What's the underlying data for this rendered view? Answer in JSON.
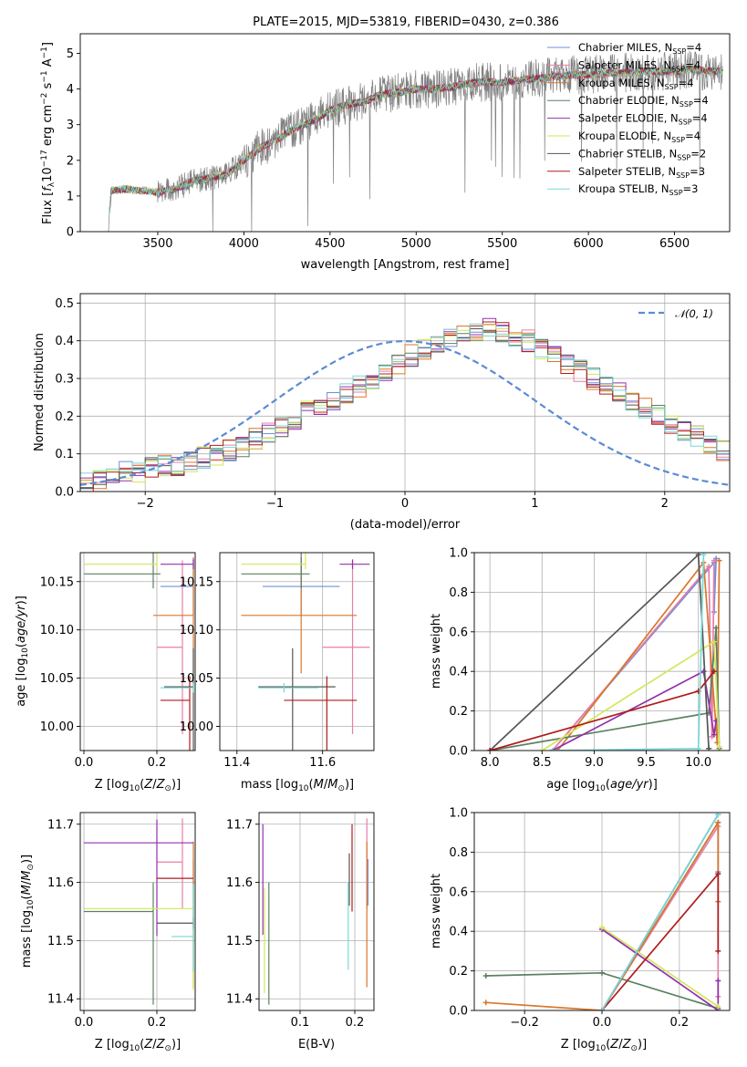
{
  "title": "PLATE=2015, MJD=53819, FIBERID=0430, z=0.386",
  "series_styles": [
    {
      "name": "Chabrier MILES, N_SSP=4",
      "color": "#6f8fdc"
    },
    {
      "name": "Salpeter MILES, N_SSP=4",
      "color": "#e87ea6"
    },
    {
      "name": "Kroupa MILES, N_SSP=4",
      "color": "#d9772b"
    },
    {
      "name": "Chabrier ELODIE, N_SSP=4",
      "color": "#5b8060"
    },
    {
      "name": "Salpeter ELODIE, N_SSP=4",
      "color": "#9330ad"
    },
    {
      "name": "Kroupa ELODIE, N_SSP=4",
      "color": "#d3e65a"
    },
    {
      "name": "Chabrier STELIB, N_SSP=2",
      "color": "#555555"
    },
    {
      "name": "Salpeter STELIB, N_SSP=3",
      "color": "#b01c1c"
    },
    {
      "name": "Kroupa STELIB, N_SSP=3",
      "color": "#78d8d4"
    }
  ],
  "chart_data": [
    {
      "id": "spectrum",
      "type": "line",
      "xlabel": "wavelength [Angstrom, rest frame]",
      "ylabel": "Flux [f_λ 10^-17 erg cm^-2 s^-1 A^-1]",
      "xlim": [
        3050,
        6820
      ],
      "ylim": [
        0,
        5.55
      ],
      "xticks": [
        3500,
        4000,
        4500,
        5000,
        5500,
        6000,
        6500
      ],
      "yticks": [
        0,
        1,
        2,
        3,
        4,
        5
      ],
      "grid": false,
      "legend_position": "top-right",
      "data_color": "#808080",
      "data_points": [
        [
          3210,
          0.0
        ],
        [
          3230,
          1.15
        ],
        [
          3300,
          1.2
        ],
        [
          3400,
          1.15
        ],
        [
          3500,
          1.1
        ],
        [
          3600,
          1.2
        ],
        [
          3700,
          1.4
        ],
        [
          3800,
          1.5
        ],
        [
          3900,
          1.6
        ],
        [
          4000,
          2.0
        ],
        [
          4100,
          2.35
        ],
        [
          4200,
          2.6
        ],
        [
          4300,
          2.9
        ],
        [
          4400,
          3.1
        ],
        [
          4500,
          3.4
        ],
        [
          4600,
          3.55
        ],
        [
          4700,
          3.65
        ],
        [
          4800,
          3.85
        ],
        [
          4900,
          3.9
        ],
        [
          5000,
          4.0
        ],
        [
          5100,
          4.0
        ],
        [
          5200,
          4.05
        ],
        [
          5300,
          4.15
        ],
        [
          5400,
          4.2
        ],
        [
          5500,
          4.2
        ],
        [
          5600,
          4.25
        ],
        [
          5700,
          4.3
        ],
        [
          5800,
          4.35
        ],
        [
          5900,
          4.4
        ],
        [
          6000,
          4.4
        ],
        [
          6100,
          4.45
        ],
        [
          6200,
          4.45
        ],
        [
          6300,
          4.5
        ],
        [
          6400,
          4.5
        ],
        [
          6500,
          4.5
        ],
        [
          6600,
          4.55
        ],
        [
          6700,
          4.5
        ],
        [
          6780,
          4.5
        ]
      ]
    },
    {
      "id": "residuals",
      "type": "histogram",
      "xlabel": "(data-model)/error",
      "ylabel": "Normed distribution",
      "xlim": [
        -2.5,
        2.5
      ],
      "ylim": [
        0,
        0.525
      ],
      "xticks": [
        -2,
        -1,
        0,
        1,
        2
      ],
      "yticks": [
        0.0,
        0.1,
        0.2,
        0.3,
        0.4,
        0.5
      ],
      "grid": true,
      "legend_position": "top-right",
      "legend_label": "𝒩(0, 1)",
      "reference_curve": "normal(0,1)",
      "reference_color": "#5b8bd4",
      "bin_edges_start": -2.5,
      "bin_width": 0.1,
      "histogram_shape": [
        0.02,
        0.03,
        0.04,
        0.05,
        0.05,
        0.06,
        0.07,
        0.07,
        0.08,
        0.09,
        0.1,
        0.11,
        0.12,
        0.14,
        0.16,
        0.17,
        0.19,
        0.21,
        0.23,
        0.24,
        0.26,
        0.28,
        0.3,
        0.32,
        0.34,
        0.36,
        0.38,
        0.39,
        0.41,
        0.42,
        0.42,
        0.43,
        0.42,
        0.41,
        0.4,
        0.38,
        0.36,
        0.34,
        0.32,
        0.3,
        0.28,
        0.26,
        0.24,
        0.22,
        0.2,
        0.18,
        0.16,
        0.15,
        0.13,
        0.11,
        0.1,
        0.09,
        0.08,
        0.07,
        0.06,
        0.05,
        0.04,
        0.035,
        0.03,
        0.025
      ]
    },
    {
      "id": "age_vs_Z",
      "type": "errorbar",
      "xlabel": "Z [log10(Z/Z⊙)]",
      "ylabel": "age [log10(age/yr)]",
      "xlim": [
        -0.01,
        0.305
      ],
      "ylim": [
        9.975,
        10.18
      ],
      "xticks": [
        0.0,
        0.2
      ],
      "yticks": [
        10.0,
        10.05,
        10.1,
        10.15
      ],
      "grid": true,
      "points": [
        [
          0.3,
          10.145,
          0.09,
          0.0,
          0.03,
          0.03
        ],
        [
          0.27,
          10.082,
          0.07,
          0.0,
          0.09,
          0.09
        ],
        [
          0.3,
          10.115,
          0.11,
          0.0,
          0.06,
          0.06
        ],
        [
          0.19,
          10.158,
          0.19,
          0.02,
          0.015,
          0.105
        ],
        [
          0.3,
          10.168,
          0.09,
          0.0,
          0.005,
          0.005
        ],
        [
          0.2,
          10.168,
          0.2,
          0.0,
          0.005,
          0.097
        ],
        [
          0.3,
          10.041,
          0.08,
          0.0,
          0.08,
          0.04
        ],
        [
          0.29,
          10.027,
          0.08,
          0.0,
          0.14,
          0.025
        ],
        [
          0.3,
          10.04,
          0.09,
          0.0,
          0.005,
          0.005
        ]
      ]
    },
    {
      "id": "age_vs_mass",
      "type": "errorbar",
      "xlabel": "mass [log10(M/M⊙)]",
      "ylabel": "",
      "xlim": [
        11.36,
        11.72
      ],
      "ylim": [
        9.975,
        10.18
      ],
      "xticks": [
        11.4,
        11.6
      ],
      "yticks": [
        10.0,
        10.05,
        10.1,
        10.15
      ],
      "grid": true,
      "points": [
        [
          11.55,
          10.145,
          0.09,
          0.09,
          0.03,
          0.03
        ],
        [
          11.67,
          10.082,
          0.07,
          0.04,
          0.09,
          0.09
        ],
        [
          11.55,
          10.115,
          0.14,
          0.13,
          0.06,
          0.06
        ],
        [
          11.55,
          10.158,
          0.14,
          0.02,
          0.015,
          0.105
        ],
        [
          11.67,
          10.168,
          0.03,
          0.04,
          0.005,
          0.005
        ],
        [
          11.56,
          10.168,
          0.15,
          0.0,
          0.005,
          0.097
        ],
        [
          11.53,
          10.041,
          0.08,
          0.1,
          0.08,
          0.04
        ],
        [
          11.61,
          10.027,
          0.1,
          0.07,
          0.14,
          0.025
        ],
        [
          11.51,
          10.04,
          0.06,
          0.08,
          0.005,
          0.005
        ]
      ]
    },
    {
      "id": "massweight_vs_age",
      "type": "line",
      "xlabel": "age [log10(age/yr)]",
      "ylabel": "mass weight",
      "xlim": [
        7.85,
        10.3
      ],
      "ylim": [
        0,
        1
      ],
      "xticks": [
        8.0,
        8.5,
        9.0,
        9.5,
        10.0
      ],
      "yticks": [
        0.0,
        0.2,
        0.4,
        0.6,
        0.8,
        1.0
      ],
      "grid": true,
      "series": [
        {
          "x": [
            8.6,
            10.15,
            10.15,
            10.17
          ],
          "y": [
            0.0,
            0.95,
            0.7,
            0.97
          ]
        },
        {
          "x": [
            8.6,
            10.1,
            10.13,
            10.15
          ],
          "y": [
            0.0,
            0.93,
            0.07,
            0.96
          ]
        },
        {
          "x": [
            8.65,
            10.05,
            10.18,
            10.2
          ],
          "y": [
            0.0,
            0.95,
            0.04,
            0.96
          ]
        },
        {
          "x": [
            8.0,
            10.1,
            10.17,
            10.2
          ],
          "y": [
            0.0,
            0.19,
            0.62,
            0.01
          ]
        },
        {
          "x": [
            8.6,
            10.05,
            10.15,
            10.17
          ],
          "y": [
            0.0,
            0.4,
            0.08,
            0.15
          ]
        },
        {
          "x": [
            8.5,
            10.15,
            10.2
          ],
          "y": [
            0.0,
            0.55,
            0.02
          ]
        },
        {
          "x": [
            8.0,
            10.0,
            10.1
          ],
          "y": [
            0.0,
            0.99,
            0.01
          ]
        },
        {
          "x": [
            8.0,
            10.0,
            10.15
          ],
          "y": [
            0.0,
            0.3,
            0.4
          ]
        },
        {
          "x": [
            8.6,
            10.0,
            10.05
          ],
          "y": [
            0.0,
            0.01,
            0.99
          ]
        }
      ]
    },
    {
      "id": "mass_vs_Z",
      "type": "errorbar",
      "xlabel": "Z [log10(Z/Z⊙)]",
      "ylabel": "mass [log10(M/M⊙)]",
      "xlim": [
        -0.01,
        0.305
      ],
      "ylim": [
        11.38,
        11.72
      ],
      "xticks": [
        0.0,
        0.2
      ],
      "yticks": [
        11.4,
        11.5,
        11.6,
        11.7
      ],
      "grid": true,
      "points": [
        [
          0.3,
          11.6,
          0.0,
          0.0,
          0.08,
          0.04
        ],
        [
          0.27,
          11.635,
          0.07,
          0.0,
          0.08,
          0.075
        ],
        [
          0.3,
          11.55,
          0.0,
          0.0,
          0.13,
          0.12
        ],
        [
          0.19,
          11.55,
          0.19,
          0.0,
          0.16,
          0.05
        ],
        [
          0.2,
          11.668,
          0.2,
          0.1,
          0.16,
          0.04
        ],
        [
          0.3,
          11.555,
          0.3,
          0.0,
          0.14,
          0.04
        ],
        [
          0.3,
          11.53,
          0.1,
          0.0,
          0.01,
          0.01
        ],
        [
          0.3,
          11.607,
          0.1,
          0.0,
          0.0,
          0.0
        ],
        [
          0.3,
          11.507,
          0.06,
          0.0,
          0.06,
          0.09
        ]
      ]
    },
    {
      "id": "mass_vs_ebv",
      "type": "errorbar",
      "xlabel": "E(B-V)",
      "ylabel": "",
      "xlim": [
        0.025,
        0.235
      ],
      "ylim": [
        11.38,
        11.72
      ],
      "xticks": [
        0.1,
        0.2
      ],
      "yticks": [
        11.4,
        11.5,
        11.6,
        11.7
      ],
      "grid": true,
      "points": [
        [
          0.224,
          11.6,
          0,
          0,
          0.04,
          0.04
        ],
        [
          0.222,
          11.635,
          0,
          0,
          0.08,
          0.075
        ],
        [
          0.222,
          11.55,
          0,
          0,
          0.13,
          0.12
        ],
        [
          0.043,
          11.55,
          0,
          0,
          0.16,
          0.05
        ],
        [
          0.032,
          11.6,
          0,
          0,
          0.09,
          0.1
        ],
        [
          0.035,
          11.55,
          0,
          0,
          0.14,
          0.04
        ],
        [
          0.19,
          11.61,
          0,
          0,
          0.05,
          0.04
        ],
        [
          0.195,
          11.6,
          0,
          0,
          0.05,
          0.1
        ],
        [
          0.188,
          11.52,
          0,
          0,
          0.07,
          0.08
        ]
      ]
    },
    {
      "id": "massweight_vs_Z",
      "type": "line",
      "xlabel": "Z [log10(Z/Z⊙)]",
      "ylabel": "mass weight",
      "xlim": [
        -0.33,
        0.33
      ],
      "ylim": [
        0,
        1
      ],
      "xticks": [
        -0.2,
        0.0,
        0.2
      ],
      "yticks": [
        0.0,
        0.2,
        0.4,
        0.6,
        0.8,
        1.0
      ],
      "grid": true,
      "series": [
        {
          "x": [
            0.0,
            0.3,
            0.3
          ],
          "y": [
            0.0,
            0.95,
            0.7
          ]
        },
        {
          "x": [
            0.0,
            0.3,
            0.3
          ],
          "y": [
            0.0,
            0.93,
            0.07
          ]
        },
        {
          "x": [
            -0.3,
            0.0,
            0.3,
            0.3
          ],
          "y": [
            0.04,
            0.0,
            0.95,
            0.55
          ]
        },
        {
          "x": [
            -0.3,
            0.0,
            0.3
          ],
          "y": [
            0.175,
            0.19,
            0.01
          ]
        },
        {
          "x": [
            0.0,
            0.3,
            0.3
          ],
          "y": [
            0.41,
            0.0,
            0.15
          ]
        },
        {
          "x": [
            0.0,
            0.3
          ],
          "y": [
            0.42,
            0.02
          ]
        },
        {
          "x": [
            0.0,
            0.3
          ],
          "y": [
            0.0,
            0.99
          ]
        },
        {
          "x": [
            0.0,
            0.3,
            0.3
          ],
          "y": [
            0.0,
            0.69,
            0.3
          ]
        },
        {
          "x": [
            0.0,
            0.3
          ],
          "y": [
            0.0,
            0.99
          ]
        }
      ]
    }
  ]
}
